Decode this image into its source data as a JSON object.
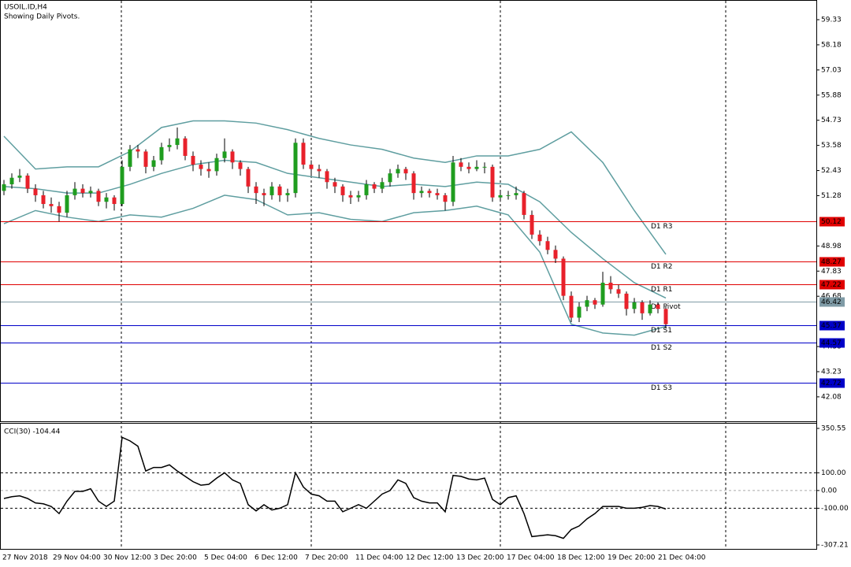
{
  "chart_data": [
    {
      "type": "candlestick",
      "title": "USOIL.ID,H4",
      "subtitle": "Showing Daily Pivots.",
      "up_color": "#1f9d1f",
      "down_color": "#e8212b",
      "wick_color": "#000000",
      "ylim": [
        40.96,
        60.23
      ],
      "yticks": [
        42.08,
        43.23,
        44.38,
        46.68,
        47.83,
        48.98,
        51.28,
        52.43,
        53.58,
        54.73,
        55.88,
        57.03,
        58.18,
        59.33
      ],
      "time_labels": [
        "27 Nov 2018",
        "29 Nov 04:00",
        "30 Nov 12:00",
        "3 Dec 20:00",
        "5 Dec 04:00",
        "6 Dec 12:00",
        "7 Dec 20:00",
        "11 Dec 04:00",
        "12 Dec 12:00",
        "13 Dec 20:00",
        "17 Dec 04:00",
        "18 Dec 12:00",
        "19 Dec 20:00",
        "21 Dec 04:00"
      ],
      "ohlc": [
        [
          51.5,
          52.0,
          51.3,
          51.8
        ],
        [
          51.8,
          52.3,
          51.6,
          52.1
        ],
        [
          52.1,
          52.5,
          51.9,
          52.2
        ],
        [
          52.2,
          52.3,
          51.4,
          51.6
        ],
        [
          51.6,
          51.8,
          51.0,
          51.3
        ],
        [
          51.3,
          51.5,
          50.7,
          50.9
        ],
        [
          50.9,
          51.2,
          50.5,
          50.8
        ],
        [
          50.8,
          51.0,
          50.1,
          50.5
        ],
        [
          50.5,
          51.5,
          50.3,
          51.3
        ],
        [
          51.3,
          51.9,
          51.1,
          51.6
        ],
        [
          51.6,
          51.8,
          51.2,
          51.4
        ],
        [
          51.4,
          51.7,
          51.2,
          51.5
        ],
        [
          51.5,
          51.6,
          50.8,
          51.0
        ],
        [
          51.0,
          51.4,
          50.7,
          51.2
        ],
        [
          51.2,
          51.3,
          50.6,
          50.9
        ],
        [
          50.9,
          52.9,
          50.8,
          52.6
        ],
        [
          52.6,
          53.6,
          52.4,
          53.4
        ],
        [
          53.4,
          53.6,
          53.0,
          53.3
        ],
        [
          53.3,
          53.4,
          52.3,
          52.6
        ],
        [
          52.6,
          53.1,
          52.4,
          52.9
        ],
        [
          52.9,
          53.7,
          52.7,
          53.5
        ],
        [
          53.5,
          53.9,
          53.3,
          53.6
        ],
        [
          53.6,
          54.4,
          53.4,
          53.9
        ],
        [
          53.9,
          54.0,
          52.9,
          53.1
        ],
        [
          53.1,
          53.3,
          52.4,
          52.7
        ],
        [
          52.7,
          52.9,
          52.2,
          52.5
        ],
        [
          52.5,
          52.8,
          52.1,
          52.4
        ],
        [
          52.4,
          53.2,
          52.2,
          53.0
        ],
        [
          53.0,
          53.9,
          52.8,
          53.3
        ],
        [
          53.3,
          53.4,
          52.5,
          52.8
        ],
        [
          52.8,
          52.9,
          52.2,
          52.5
        ],
        [
          52.5,
          52.6,
          51.4,
          51.7
        ],
        [
          51.7,
          51.9,
          50.9,
          51.4
        ],
        [
          51.4,
          51.6,
          50.8,
          51.3
        ],
        [
          51.3,
          51.9,
          51.1,
          51.7
        ],
        [
          51.7,
          51.8,
          51.0,
          51.3
        ],
        [
          51.3,
          51.6,
          51.0,
          51.4
        ],
        [
          51.4,
          53.9,
          51.2,
          53.7
        ],
        [
          53.7,
          53.9,
          52.5,
          52.7
        ],
        [
          52.7,
          52.9,
          52.2,
          52.5
        ],
        [
          52.5,
          52.7,
          52.1,
          52.4
        ],
        [
          52.4,
          52.5,
          51.6,
          51.9
        ],
        [
          51.9,
          52.1,
          51.4,
          51.7
        ],
        [
          51.7,
          51.8,
          51.0,
          51.3
        ],
        [
          51.3,
          51.5,
          50.9,
          51.2
        ],
        [
          51.2,
          51.5,
          51.0,
          51.3
        ],
        [
          51.3,
          52.0,
          51.1,
          51.8
        ],
        [
          51.8,
          51.9,
          51.4,
          51.6
        ],
        [
          51.6,
          52.1,
          51.4,
          51.9
        ],
        [
          51.9,
          52.5,
          51.7,
          52.3
        ],
        [
          52.3,
          52.7,
          52.1,
          52.5
        ],
        [
          52.5,
          52.6,
          52.0,
          52.3
        ],
        [
          52.3,
          52.4,
          51.1,
          51.4
        ],
        [
          51.4,
          51.7,
          51.2,
          51.5
        ],
        [
          51.5,
          51.6,
          51.2,
          51.4
        ],
        [
          51.4,
          51.6,
          51.1,
          51.3
        ],
        [
          51.3,
          51.4,
          50.6,
          51.0
        ],
        [
          51.0,
          53.1,
          50.8,
          52.8
        ],
        [
          52.8,
          53.0,
          52.4,
          52.6
        ],
        [
          52.6,
          52.8,
          52.3,
          52.5
        ],
        [
          52.5,
          52.9,
          52.4,
          52.6
        ],
        [
          52.6,
          52.8,
          52.3,
          52.6
        ],
        [
          52.6,
          52.7,
          51.0,
          51.2
        ],
        [
          51.2,
          51.5,
          51.0,
          51.3
        ],
        [
          51.3,
          51.5,
          51.1,
          51.3
        ],
        [
          51.3,
          51.7,
          51.1,
          51.4
        ],
        [
          51.4,
          51.5,
          50.2,
          50.4
        ],
        [
          50.4,
          50.6,
          49.3,
          49.5
        ],
        [
          49.5,
          49.7,
          49.0,
          49.2
        ],
        [
          49.2,
          49.4,
          48.6,
          48.8
        ],
        [
          48.8,
          49.0,
          48.2,
          48.4
        ],
        [
          48.4,
          48.5,
          46.5,
          46.7
        ],
        [
          46.7,
          46.9,
          45.5,
          45.7
        ],
        [
          45.7,
          46.4,
          45.5,
          46.2
        ],
        [
          46.2,
          46.7,
          46.0,
          46.5
        ],
        [
          46.5,
          46.6,
          46.1,
          46.3
        ],
        [
          46.3,
          47.8,
          46.2,
          47.3
        ],
        [
          47.3,
          47.6,
          46.8,
          47.0
        ],
        [
          47.0,
          47.2,
          46.6,
          46.8
        ],
        [
          46.8,
          46.9,
          45.8,
          46.1
        ],
        [
          46.1,
          46.6,
          45.9,
          46.4
        ],
        [
          46.4,
          46.5,
          45.6,
          45.9
        ],
        [
          45.9,
          46.5,
          45.8,
          46.3
        ],
        [
          46.3,
          46.4,
          45.9,
          46.1
        ],
        [
          46.1,
          46.2,
          45.2,
          45.4
        ]
      ],
      "bands": {
        "x": [
          0,
          4,
          8,
          12,
          16,
          20,
          24,
          28,
          32,
          36,
          40,
          44,
          48,
          52,
          56,
          60,
          64,
          68,
          72,
          76,
          80,
          84
        ],
        "series": [
          {
            "color": "#5f9ea0",
            "values": [
              54.0,
              52.5,
              52.6,
              52.6,
              53.3,
              54.4,
              54.7,
              54.7,
              54.6,
              54.3,
              53.9,
              53.6,
              53.4,
              53.0,
              52.8,
              53.1,
              53.1,
              53.4,
              54.2,
              52.8,
              50.6,
              48.6
            ]
          },
          {
            "color": "#5f9ea0",
            "values": [
              51.7,
              51.6,
              51.4,
              51.4,
              51.8,
              52.3,
              52.7,
              52.9,
              52.8,
              52.3,
              52.1,
              51.9,
              51.7,
              51.8,
              51.7,
              51.9,
              51.8,
              51.0,
              49.6,
              48.4,
              47.3,
              46.6
            ]
          },
          {
            "color": "#5f9ea0",
            "values": [
              50.0,
              50.6,
              50.3,
              50.1,
              50.4,
              50.3,
              50.7,
              51.3,
              51.1,
              50.4,
              50.5,
              50.2,
              50.1,
              50.5,
              50.6,
              50.8,
              50.4,
              48.7,
              45.4,
              45.0,
              44.9,
              45.3
            ]
          }
        ]
      },
      "pivots": [
        {
          "name": "D1 R3",
          "value": 50.12,
          "color": "#e00000"
        },
        {
          "name": "D1 R2",
          "value": 48.27,
          "color": "#e00000"
        },
        {
          "name": "D1 R1",
          "value": 47.22,
          "color": "#e00000"
        },
        {
          "name": "D1 Pivot",
          "value": 46.42,
          "color": "#7f9ba6"
        },
        {
          "name": "D1 S1",
          "value": 45.37,
          "color": "#0000c8"
        },
        {
          "name": "D1 S2",
          "value": 44.57,
          "color": "#0000c8"
        },
        {
          "name": "D1 S3",
          "value": 42.72,
          "color": "#0000c8"
        }
      ]
    },
    {
      "type": "line",
      "title": "CCI(30) -104.44",
      "color": "#000000",
      "ylim": [
        -329.4,
        381.6
      ],
      "yticks": [
        -307.21,
        {
          "value": -100,
          "label": "-100.00"
        },
        {
          "value": 0,
          "label": "0.00"
        },
        {
          "value": 100,
          "label": "100.00"
        },
        350.55
      ],
      "values": [
        -45,
        -35,
        -30,
        -45,
        -70,
        -75,
        -90,
        -130,
        -60,
        -5,
        -5,
        10,
        -60,
        -90,
        -60,
        300,
        280,
        250,
        110,
        130,
        130,
        145,
        110,
        80,
        50,
        30,
        35,
        70,
        100,
        60,
        40,
        -80,
        -115,
        -80,
        -110,
        -100,
        -80,
        100,
        20,
        -20,
        -30,
        -60,
        -60,
        -120,
        -100,
        -80,
        -100,
        -60,
        -20,
        0,
        60,
        40,
        -40,
        -60,
        -70,
        -70,
        -120,
        85,
        80,
        65,
        60,
        70,
        -50,
        -80,
        -40,
        -30,
        -130,
        -260,
        -255,
        -250,
        -255,
        -270,
        -220,
        -200,
        -160,
        -130,
        -90,
        -90,
        -90,
        -100,
        -100,
        -95,
        -85,
        -90,
        -104.44
      ]
    }
  ]
}
